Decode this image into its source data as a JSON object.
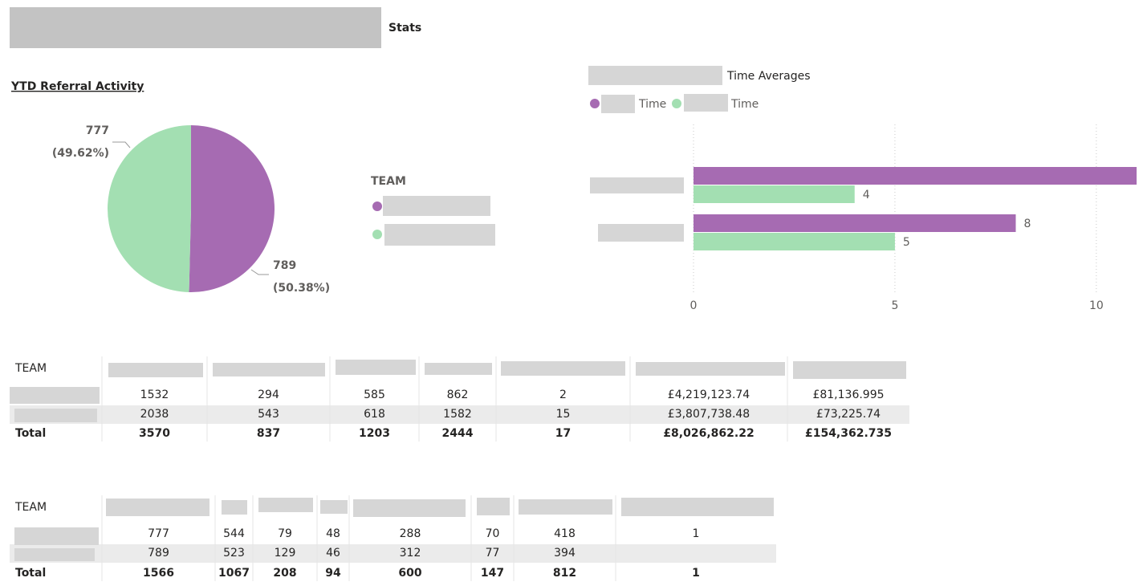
{
  "header": {
    "title": "Stats"
  },
  "chart_data": [
    {
      "type": "pie",
      "title": "YTD Referral Activity",
      "legend_title": "TEAM",
      "values": [
        777,
        789
      ],
      "percent_labels": [
        "(49.62%)",
        "(50.38%)"
      ],
      "colors": [
        "#a3dfb2",
        "#a66bb2"
      ]
    },
    {
      "type": "hbar",
      "title": "Time Averages",
      "categories": [
        null,
        null
      ],
      "series": [
        {
          "name": "Time",
          "color": "#a66bb2",
          "values": [
            11,
            8
          ]
        },
        {
          "name": "Time",
          "color": "#a3dfb2",
          "values": [
            4,
            5
          ]
        }
      ],
      "xlim": [
        0,
        10.8
      ],
      "xticks": [
        0,
        5,
        10
      ],
      "grid": true
    }
  ],
  "tables": [
    {
      "header": "TEAM",
      "rows": [
        [
          1532,
          294,
          585,
          862,
          2,
          "£4,219,123.74",
          "£81,136.995"
        ],
        [
          2038,
          543,
          618,
          1582,
          15,
          "£3,807,738.48",
          "£73,225.74"
        ]
      ],
      "total_label": "Total",
      "total": [
        3570,
        837,
        1203,
        2444,
        17,
        "£8,026,862.22",
        "£154,362.735"
      ]
    },
    {
      "header": "TEAM",
      "rows": [
        [
          777,
          544,
          79,
          48,
          288,
          70,
          418,
          1
        ],
        [
          789,
          523,
          129,
          46,
          312,
          77,
          394,
          null
        ]
      ],
      "total_label": "Total",
      "total": [
        1566,
        1067,
        208,
        94,
        600,
        147,
        812,
        1
      ]
    }
  ]
}
